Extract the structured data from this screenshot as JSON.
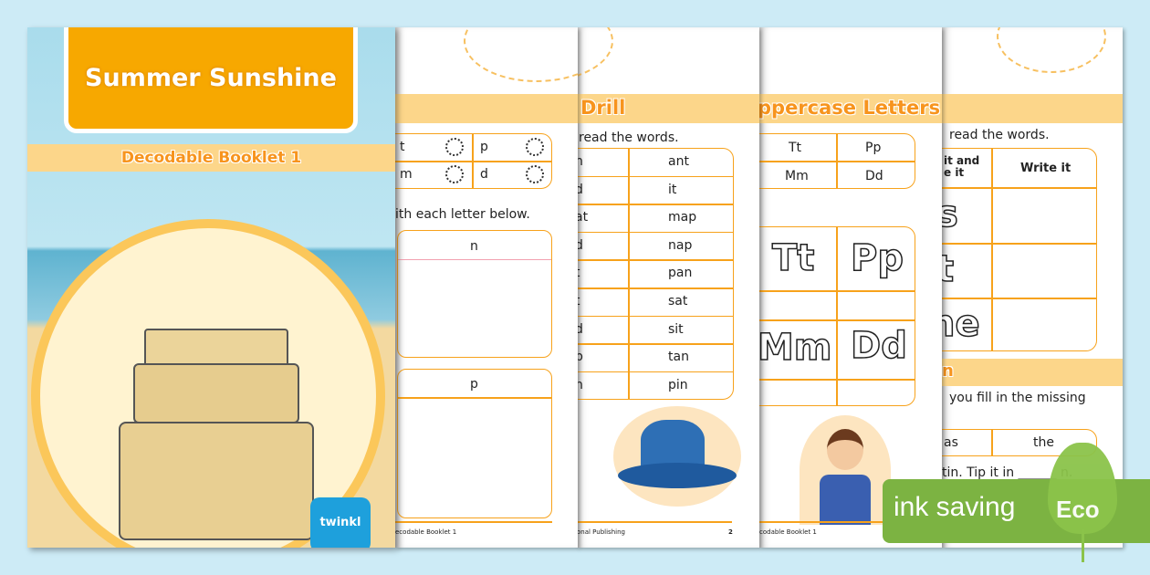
{
  "cover": {
    "title": "Summer Sunshine",
    "subtitle": "Decodable Booklet 1",
    "logo": "twinkl"
  },
  "page1": {
    "letters": [
      "t",
      "p",
      "m",
      "d"
    ],
    "instruction": "ith each letter below.",
    "box1": "n",
    "box2": "p",
    "footer": "ecodable Booklet 1"
  },
  "page2": {
    "title": "Drill",
    "instruction": "read the words.",
    "left": [
      "n",
      "d",
      "at",
      "d",
      "t",
      "t",
      "d",
      "p",
      "n"
    ],
    "right": [
      "ant",
      "it",
      "map",
      "nap",
      "pan",
      "sat",
      "sit",
      "tan",
      "pin"
    ],
    "footer": "onal Publishing",
    "page_number": "2"
  },
  "page3": {
    "title": "ppercase Letters",
    "pairs": [
      "Tt",
      "Pp",
      "Mm",
      "Dd"
    ],
    "trace": [
      "Tt",
      "Pp",
      "Mm",
      "Dd"
    ],
    "footer": "codable Booklet 1"
  },
  "page4": {
    "instruction": "read the words.",
    "col1_header": "it and\ne it",
    "col2_header": "Write it",
    "rows": [
      "s",
      "t",
      "ne"
    ],
    "section_title": "n",
    "instruction2": "you fill in the missing",
    "words": [
      "as",
      "the"
    ],
    "sentence": "tin.  Tip it in ______ n."
  },
  "badge": {
    "text": "ink saving",
    "leaf": "Eco",
    "color": "#7cb342"
  },
  "colors": {
    "accent": "#f7a21b",
    "band": "#fcd68a",
    "background": "#cdebf6"
  }
}
